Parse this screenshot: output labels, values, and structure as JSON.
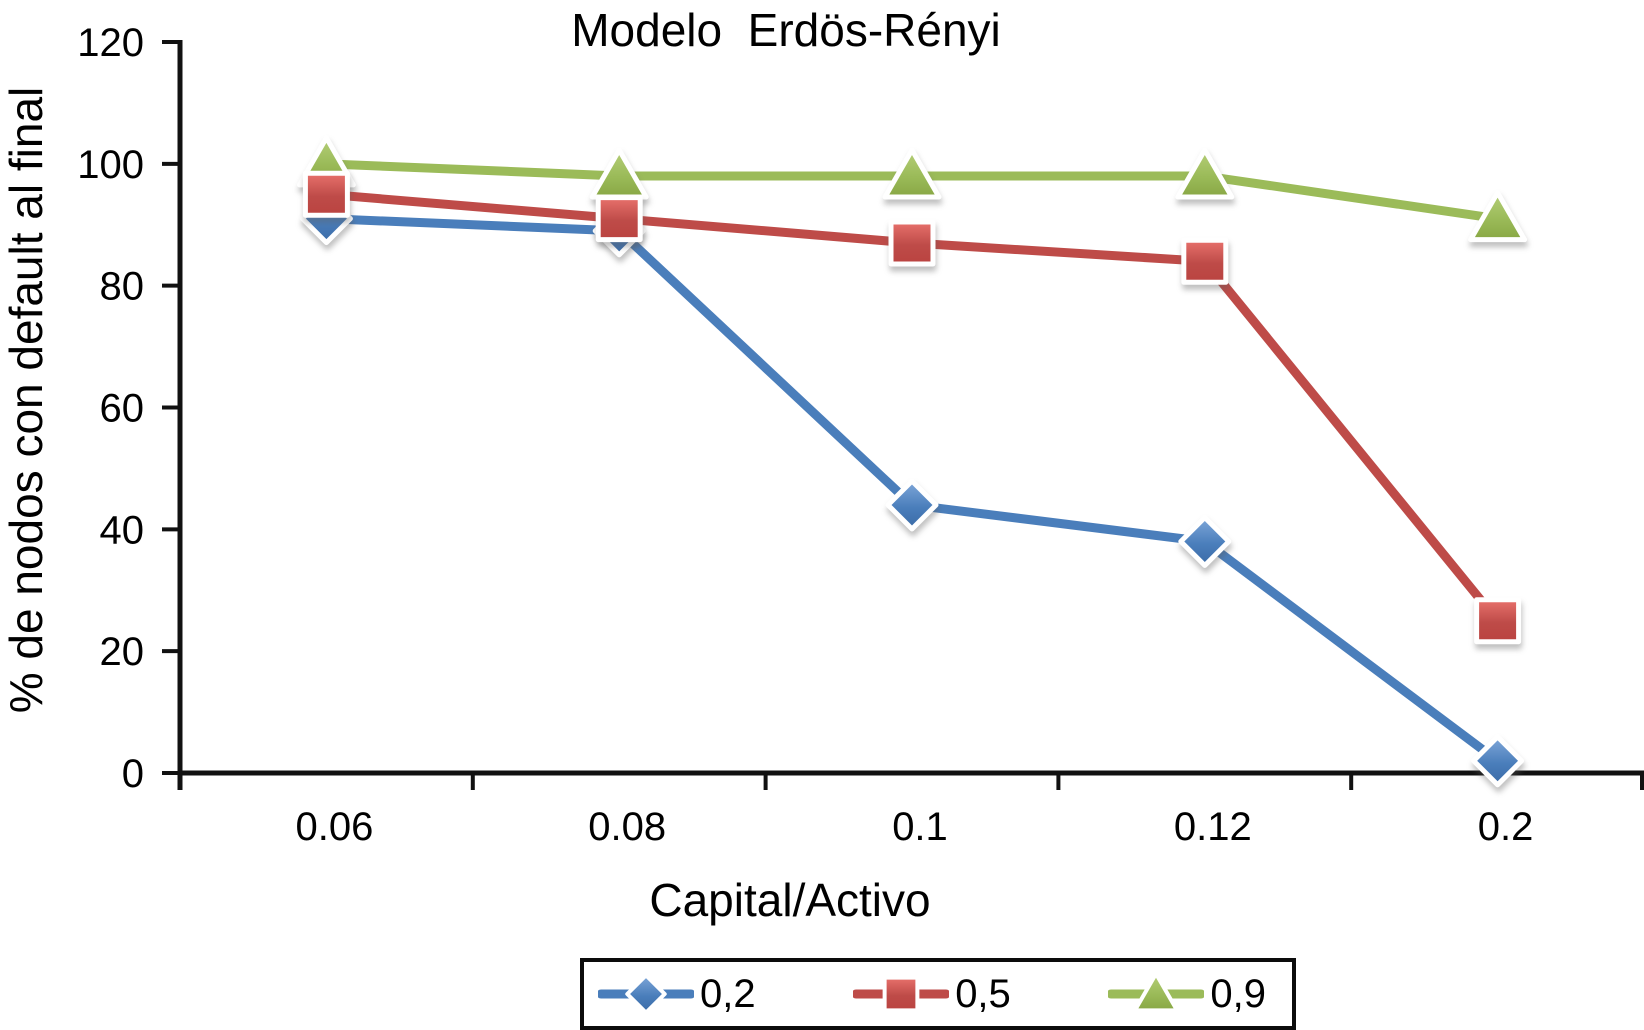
{
  "chart_data": {
    "type": "line",
    "title": "Modelo  Erdös-Rényi",
    "xlabel": "Capital/Activo",
    "ylabel": "% de nodos con default al final",
    "categories": [
      "0.06",
      "0.08",
      "0.1",
      "0.12",
      "0.2"
    ],
    "x": [
      0.06,
      0.08,
      0.1,
      0.12,
      0.2
    ],
    "ylim": [
      0,
      120
    ],
    "yticks": [
      0,
      20,
      40,
      60,
      80,
      100,
      120
    ],
    "grid": false,
    "legend_position": "bottom-center",
    "series": [
      {
        "name": "0,2",
        "marker": "diamond",
        "color": "#4A7EBB",
        "marker_light": "#7FA7D9",
        "marker_dark": "#3A6AA6",
        "values": [
          91,
          89,
          44,
          38,
          2
        ]
      },
      {
        "name": "0,5",
        "marker": "square",
        "color": "#BE4B48",
        "marker_light": "#E8716C",
        "marker_dark": "#BA4340",
        "values": [
          95,
          91,
          87,
          84,
          25
        ]
      },
      {
        "name": "0,9",
        "marker": "triangle",
        "color": "#9BBB59",
        "marker_light": "#B5CE78",
        "marker_dark": "#88A744",
        "values": [
          100,
          98,
          98,
          98,
          91
        ]
      }
    ]
  }
}
